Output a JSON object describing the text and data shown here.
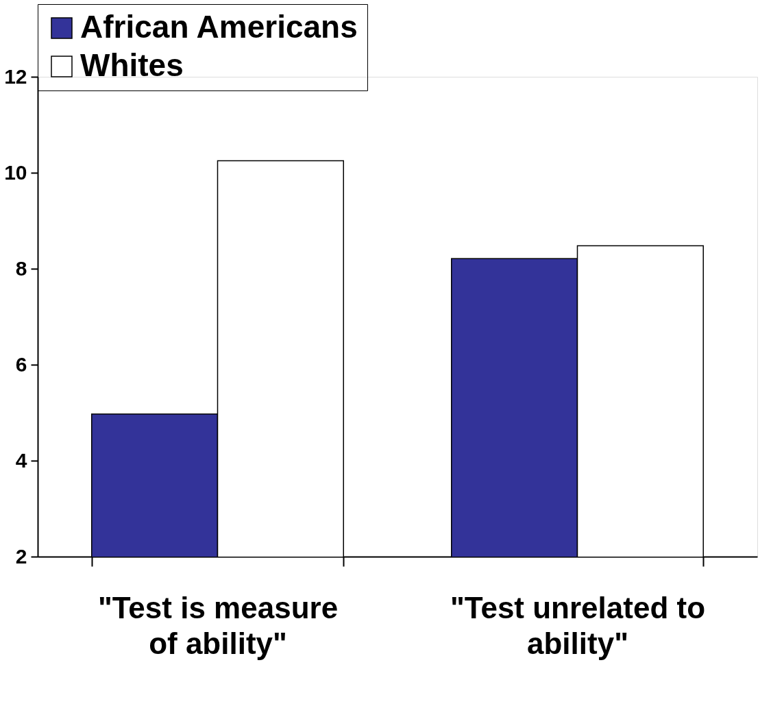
{
  "chart_data": {
    "type": "bar",
    "categories": [
      "\"Test is measure of ability\"",
      "\"Test unrelated to ability\""
    ],
    "series": [
      {
        "name": "African Americans",
        "color": "#333399",
        "values": [
          4.97,
          8.21
        ]
      },
      {
        "name": "Whites",
        "color": "#ffffff",
        "values": [
          10.25,
          8.48
        ]
      }
    ],
    "ylim": [
      2,
      12
    ],
    "yticks": [
      2,
      4,
      6,
      8,
      10,
      12
    ],
    "grid": false,
    "legend": "top"
  }
}
